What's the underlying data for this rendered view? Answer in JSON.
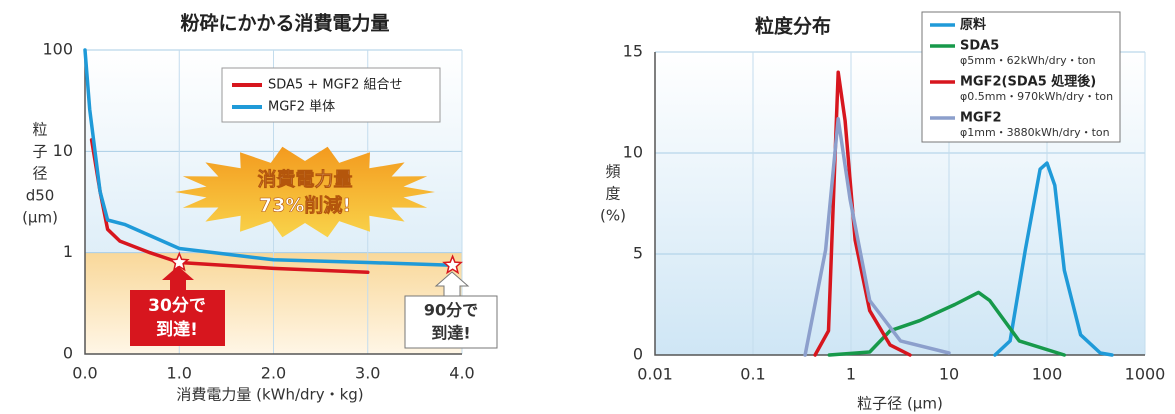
{
  "chart_data": [
    {
      "type": "line",
      "title": "粉砕にかかる消費電力量",
      "x_label": "消費電力量 (kWh/dry・kg)",
      "y_label_lines": [
        "粒",
        "子",
        "径",
        "d50",
        "(μm)"
      ],
      "xlim": [
        0,
        4
      ],
      "ylim": [
        0.1,
        100
      ],
      "yscale": "log",
      "xticks": [
        {
          "value": 0,
          "label": "0.0"
        },
        {
          "value": 1,
          "label": "1.0"
        },
        {
          "value": 2,
          "label": "2.0"
        },
        {
          "value": 3,
          "label": "3.0"
        },
        {
          "value": 4,
          "label": "4.0"
        }
      ],
      "yticks": [
        {
          "value": 0.1,
          "label": "0"
        },
        1,
        10,
        100
      ],
      "grid": true,
      "legend": "upper right",
      "series": [
        {
          "name": "SDA5 + MGF2 組合せ",
          "color": "#d7161e",
          "x": [
            0.07,
            0.16,
            0.24,
            0.37,
            0.69,
            1.0,
            2.0,
            3.0
          ],
          "values": [
            13,
            4,
            1.7,
            1.3,
            1.0,
            0.8,
            0.7,
            0.64
          ]
        },
        {
          "name": "MGF2 単体",
          "color": "#1f9ad8",
          "x": [
            0,
            0.05,
            0.16,
            0.24,
            0.42,
            1.0,
            2.0,
            3.0,
            3.9
          ],
          "values": [
            100,
            26,
            4,
            2.1,
            1.9,
            1.1,
            0.85,
            0.8,
            0.75
          ]
        }
      ],
      "annotations": [
        {
          "lines": [
            "消費電力量",
            "73%削減!"
          ]
        },
        {
          "lines": [
            "30分で",
            "到達!"
          ]
        },
        {
          "lines": [
            "90分で",
            "到達!"
          ]
        }
      ]
    },
    {
      "type": "line",
      "title": "粒度分布",
      "x_label": "粒子径 (μm)",
      "y_label_lines": [
        "頻",
        "度",
        "(%)"
      ],
      "xlim": [
        0.01,
        1000
      ],
      "ylim": [
        0,
        15
      ],
      "xscale": "log",
      "xticks": [
        0.01,
        0.1,
        1,
        10,
        100,
        1000
      ],
      "yticks": [
        0,
        5,
        10,
        15
      ],
      "grid": true,
      "legend": "upper right outside",
      "series": [
        {
          "name": "原料",
          "color": "#1f9ad8",
          "x": [
            29.5,
            42,
            60,
            85,
            100,
            120,
            150,
            220,
            350,
            460
          ],
          "values": [
            0,
            0.7,
            5.2,
            9.2,
            9.5,
            8.4,
            4.2,
            1.0,
            0.1,
            0
          ]
        },
        {
          "name": "SDA5",
          "detail": "φ5mm・62kWh/dry・ton",
          "color": "#17994a",
          "x": [
            0.6,
            1.55,
            2.5,
            5,
            11.5,
            20,
            26,
            52,
            150
          ],
          "values": [
            0,
            0.15,
            1.2,
            1.7,
            2.5,
            3.1,
            2.7,
            0.7,
            0
          ]
        },
        {
          "name": "MGF2(SDA5 処理後)",
          "detail": "φ0.5mm・970kWh/dry・ton",
          "color": "#d7161e",
          "x": [
            0.43,
            0.59,
            0.74,
            0.87,
            1.1,
            1.55,
            2.5,
            4
          ],
          "values": [
            0,
            1.2,
            14,
            11.6,
            5.7,
            2.2,
            0.5,
            0
          ]
        },
        {
          "name": "MGF2",
          "detail": "φ1mm・3880kWh/dry・ton",
          "color": "#8c9fcc",
          "x": [
            0.34,
            0.55,
            0.74,
            0.98,
            1.55,
            3.2,
            10
          ],
          "values": [
            0,
            5.2,
            11.7,
            7.7,
            2.7,
            0.7,
            0.1
          ]
        }
      ]
    }
  ]
}
